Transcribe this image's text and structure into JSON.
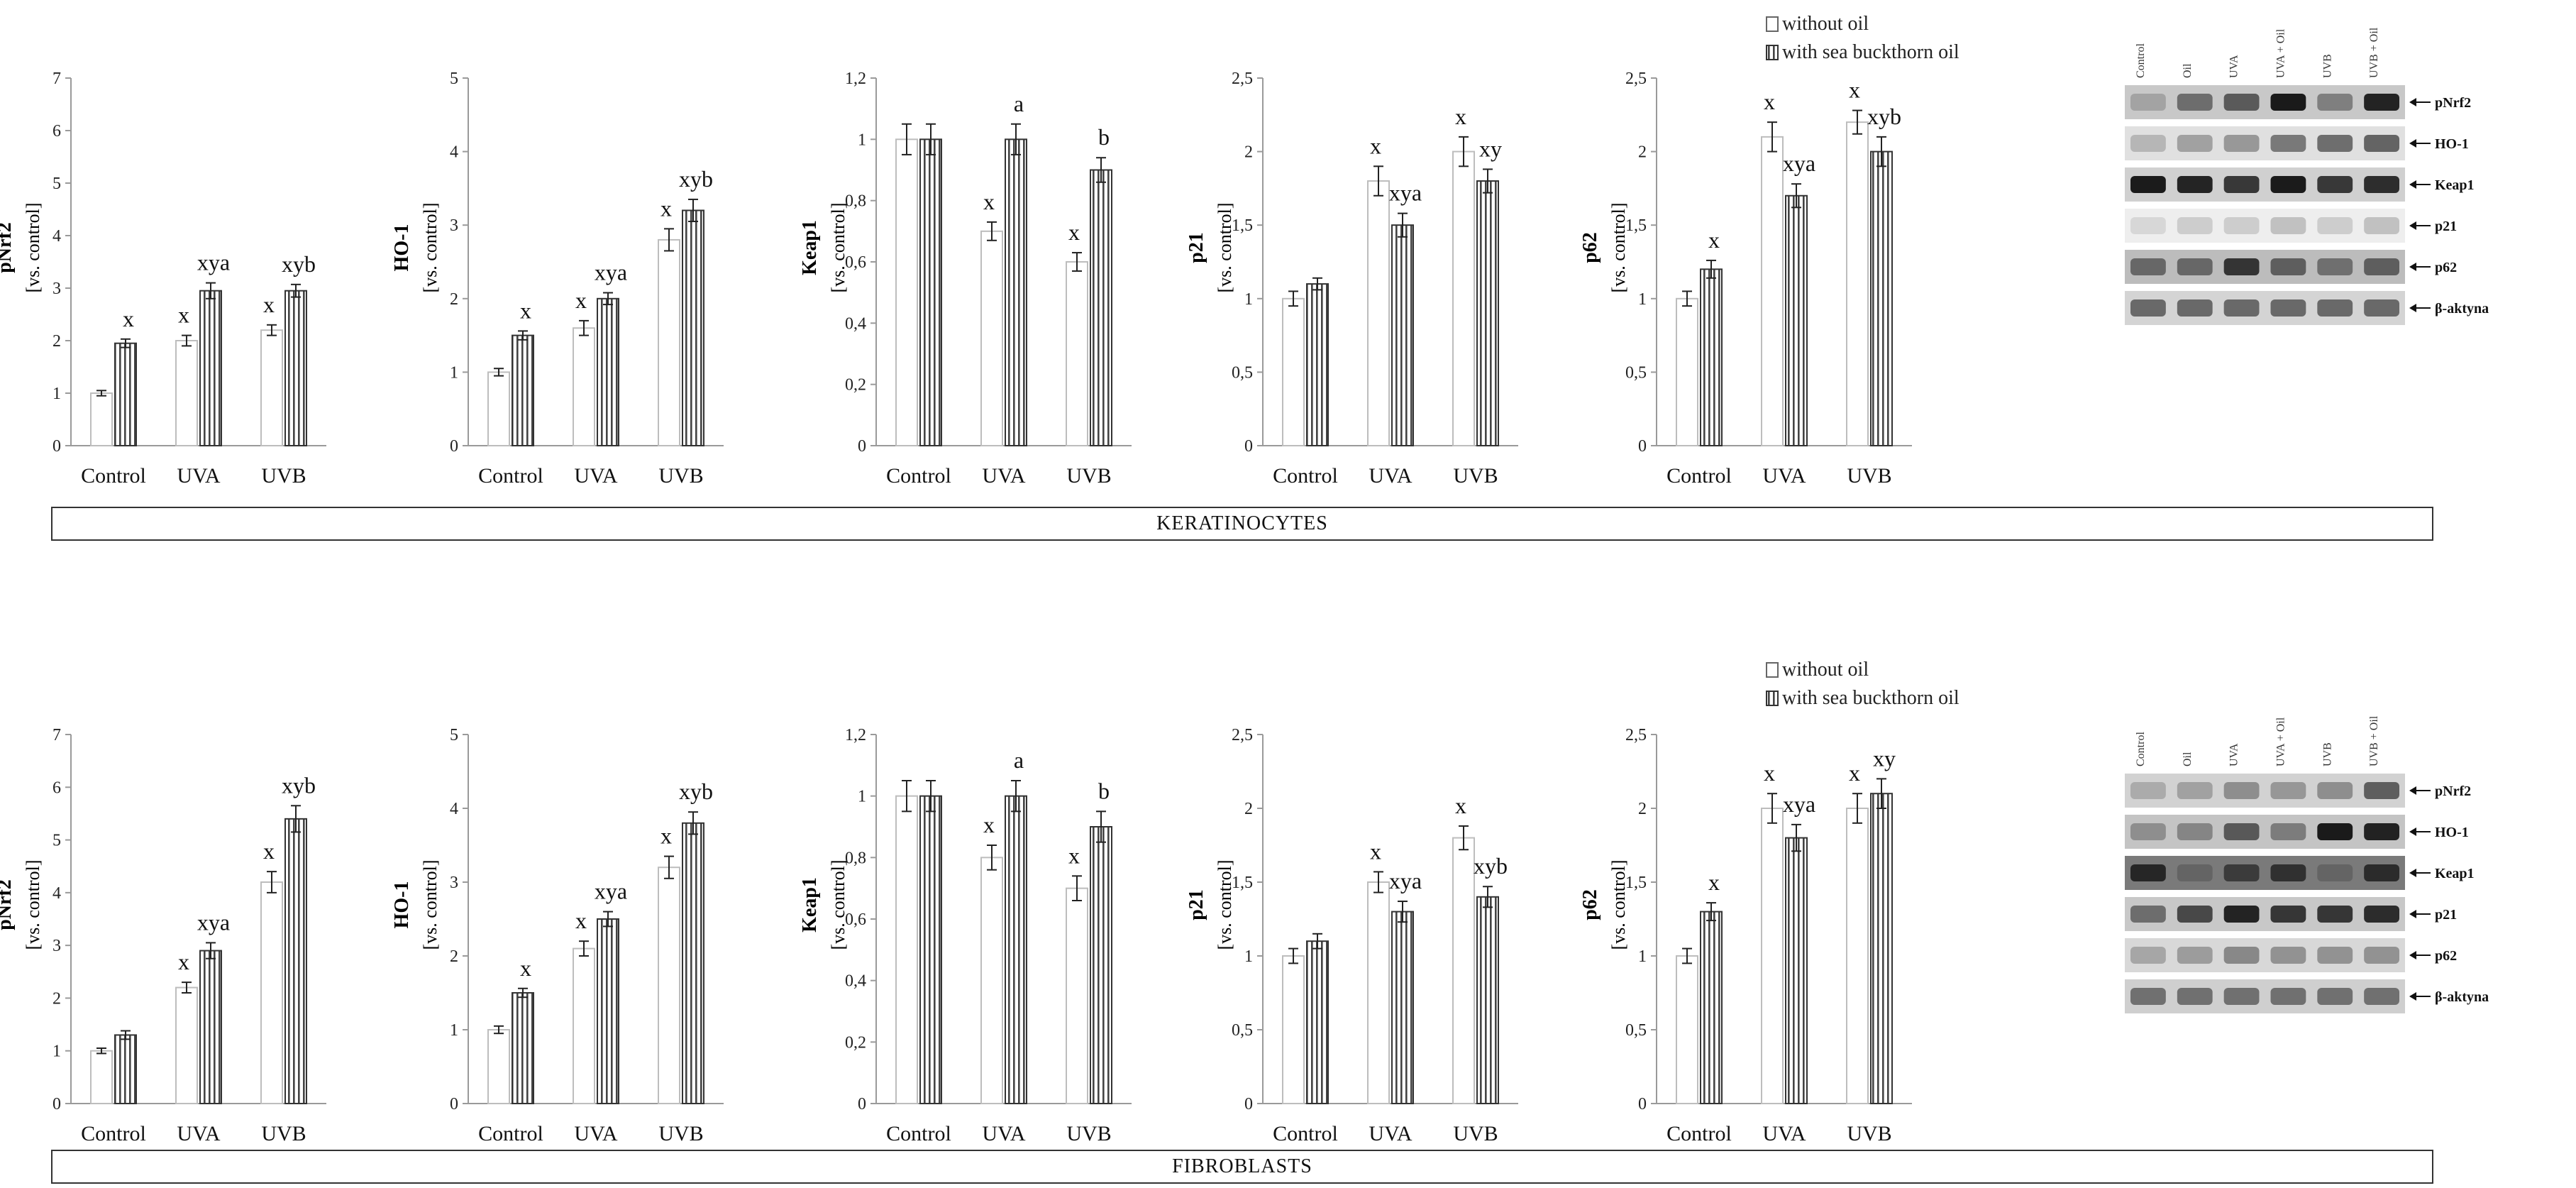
{
  "legend": {
    "without_oil": "without oil",
    "with_oil": "with sea buckthorn oil"
  },
  "sections": {
    "keratinocytes": "KERATINOCYTES",
    "fibroblasts": "FIBROBLASTS"
  },
  "western_blot": {
    "columns": [
      "Control",
      "Oil",
      "UVA",
      "UVA + Oil",
      "UVB",
      "UVB + Oil"
    ],
    "rows_keratinocytes": [
      "pNrf2",
      "HO-1",
      "Keap1",
      "p21",
      "p62",
      "β-aktyna"
    ],
    "rows_fibroblasts": [
      "pNrf2",
      "HO-1",
      "Keap1",
      "p21",
      "p62",
      "β-aktyna"
    ]
  },
  "colors": {
    "bar_without_oil": "#ffffff",
    "bar_with_oil_hatch": "#555555",
    "axis": "#999999"
  },
  "chart_data": [
    {
      "type": "bar",
      "panel": "keratinocytes",
      "title": "pNrf2",
      "ylabel": "[vs. control]",
      "categories": [
        "Control",
        "UVA",
        "UVB"
      ],
      "ylim": [
        0,
        7
      ],
      "yticks": [
        "0",
        "1",
        "2",
        "3",
        "4",
        "5",
        "6",
        "7"
      ],
      "series": [
        {
          "name": "without oil",
          "values": [
            1.0,
            2.0,
            2.2
          ],
          "errors": [
            0.05,
            0.1,
            0.1
          ],
          "labels": [
            "",
            "x",
            "x"
          ]
        },
        {
          "name": "with sea buckthorn oil",
          "values": [
            1.95,
            2.95,
            2.95
          ],
          "errors": [
            0.08,
            0.15,
            0.12
          ],
          "labels": [
            "x",
            "xya",
            "xyb"
          ]
        }
      ]
    },
    {
      "type": "bar",
      "panel": "keratinocytes",
      "title": "HO-1",
      "ylabel": "[vs. control]",
      "categories": [
        "Control",
        "UVA",
        "UVB"
      ],
      "ylim": [
        0,
        5
      ],
      "yticks": [
        "0",
        "1",
        "2",
        "3",
        "4",
        "5"
      ],
      "series": [
        {
          "name": "without oil",
          "values": [
            1.0,
            1.6,
            2.8
          ],
          "errors": [
            0.05,
            0.1,
            0.15
          ],
          "labels": [
            "",
            "x",
            "x"
          ]
        },
        {
          "name": "with sea buckthorn oil",
          "values": [
            1.5,
            2.0,
            3.2
          ],
          "errors": [
            0.06,
            0.08,
            0.15
          ],
          "labels": [
            "x",
            "xya",
            "xyb"
          ]
        }
      ]
    },
    {
      "type": "bar",
      "panel": "keratinocytes",
      "title": "Keap1",
      "ylabel": "[vs. control]",
      "categories": [
        "Control",
        "UVA",
        "UVB"
      ],
      "ylim": [
        0,
        1.2
      ],
      "yticks": [
        "0",
        "0,2",
        "0,4",
        "0,6",
        "0,8",
        "1",
        "1,2"
      ],
      "series": [
        {
          "name": "without oil",
          "values": [
            1.0,
            0.7,
            0.6
          ],
          "errors": [
            0.05,
            0.03,
            0.03
          ],
          "labels": [
            "",
            "x",
            "x"
          ]
        },
        {
          "name": "with sea buckthorn oil",
          "values": [
            1.0,
            1.0,
            0.9
          ],
          "errors": [
            0.05,
            0.05,
            0.04
          ],
          "labels": [
            "",
            "a",
            "b"
          ]
        }
      ]
    },
    {
      "type": "bar",
      "panel": "keratinocytes",
      "title": "p21",
      "ylabel": "[vs. control]",
      "categories": [
        "Control",
        "UVA",
        "UVB"
      ],
      "ylim": [
        0,
        2.5
      ],
      "yticks": [
        "0",
        "0,5",
        "1",
        "1,5",
        "2",
        "2,5"
      ],
      "series": [
        {
          "name": "without oil",
          "values": [
            1.0,
            1.8,
            2.0
          ],
          "errors": [
            0.05,
            0.1,
            0.1
          ],
          "labels": [
            "",
            "x",
            "x"
          ]
        },
        {
          "name": "with sea buckthorn oil",
          "values": [
            1.1,
            1.5,
            1.8
          ],
          "errors": [
            0.04,
            0.08,
            0.08
          ],
          "labels": [
            "",
            "xya",
            "xy"
          ]
        }
      ]
    },
    {
      "type": "bar",
      "panel": "keratinocytes",
      "title": "p62",
      "ylabel": "[vs. control]",
      "categories": [
        "Control",
        "UVA",
        "UVB"
      ],
      "ylim": [
        0,
        2.5
      ],
      "yticks": [
        "0",
        "0,5",
        "1",
        "1,5",
        "2",
        "2,5"
      ],
      "series": [
        {
          "name": "without oil",
          "values": [
            1.0,
            2.1,
            2.2
          ],
          "errors": [
            0.05,
            0.1,
            0.08
          ],
          "labels": [
            "",
            "x",
            "x"
          ]
        },
        {
          "name": "with sea buckthorn oil",
          "values": [
            1.2,
            1.7,
            2.0
          ],
          "errors": [
            0.06,
            0.08,
            0.1
          ],
          "labels": [
            "x",
            "xya",
            "xyb"
          ]
        }
      ]
    },
    {
      "type": "bar",
      "panel": "fibroblasts",
      "title": "pNrf2",
      "ylabel": "[vs. control]",
      "categories": [
        "Control",
        "UVA",
        "UVB"
      ],
      "ylim": [
        0,
        7
      ],
      "yticks": [
        "0",
        "1",
        "2",
        "3",
        "4",
        "5",
        "6",
        "7"
      ],
      "series": [
        {
          "name": "without oil",
          "values": [
            1.0,
            2.2,
            4.2
          ],
          "errors": [
            0.05,
            0.1,
            0.2
          ],
          "labels": [
            "",
            "x",
            "x"
          ]
        },
        {
          "name": "with sea buckthorn oil",
          "values": [
            1.3,
            2.9,
            5.4
          ],
          "errors": [
            0.08,
            0.15,
            0.25
          ],
          "labels": [
            "",
            "xya",
            "xyb"
          ]
        }
      ]
    },
    {
      "type": "bar",
      "panel": "fibroblasts",
      "title": "HO-1",
      "ylabel": "[vs. control]",
      "categories": [
        "Control",
        "UVA",
        "UVB"
      ],
      "ylim": [
        0,
        5
      ],
      "yticks": [
        "0",
        "1",
        "2",
        "3",
        "4",
        "5"
      ],
      "series": [
        {
          "name": "without oil",
          "values": [
            1.0,
            2.1,
            3.2
          ],
          "errors": [
            0.05,
            0.1,
            0.15
          ],
          "labels": [
            "",
            "x",
            "x"
          ]
        },
        {
          "name": "with sea buckthorn oil",
          "values": [
            1.5,
            2.5,
            3.8
          ],
          "errors": [
            0.06,
            0.1,
            0.15
          ],
          "labels": [
            "x",
            "xya",
            "xyb"
          ]
        }
      ]
    },
    {
      "type": "bar",
      "panel": "fibroblasts",
      "title": "Keap1",
      "ylabel": "[vs. control]",
      "categories": [
        "Control",
        "UVA",
        "UVB"
      ],
      "ylim": [
        0,
        1.2
      ],
      "yticks": [
        "0",
        "0,2",
        "0,4",
        "0,6",
        "0,8",
        "1",
        "1,2"
      ],
      "series": [
        {
          "name": "without oil",
          "values": [
            1.0,
            0.8,
            0.7
          ],
          "errors": [
            0.05,
            0.04,
            0.04
          ],
          "labels": [
            "",
            "x",
            "x"
          ]
        },
        {
          "name": "with sea buckthorn oil",
          "values": [
            1.0,
            1.0,
            0.9
          ],
          "errors": [
            0.05,
            0.05,
            0.05
          ],
          "labels": [
            "",
            "a",
            "b"
          ]
        }
      ]
    },
    {
      "type": "bar",
      "panel": "fibroblasts",
      "title": "p21",
      "ylabel": "[vs. control]",
      "categories": [
        "Control",
        "UVA",
        "UVB"
      ],
      "ylim": [
        0,
        2.5
      ],
      "yticks": [
        "0",
        "0,5",
        "1",
        "1,5",
        "2",
        "2,5"
      ],
      "series": [
        {
          "name": "without oil",
          "values": [
            1.0,
            1.5,
            1.8
          ],
          "errors": [
            0.05,
            0.07,
            0.08
          ],
          "labels": [
            "",
            "x",
            "x"
          ]
        },
        {
          "name": "with sea buckthorn oil",
          "values": [
            1.1,
            1.3,
            1.4
          ],
          "errors": [
            0.05,
            0.07,
            0.07
          ],
          "labels": [
            "",
            "xya",
            "xyb"
          ]
        }
      ]
    },
    {
      "type": "bar",
      "panel": "fibroblasts",
      "title": "p62",
      "ylabel": "[vs. control]",
      "categories": [
        "Control",
        "UVA",
        "UVB"
      ],
      "ylim": [
        0,
        2.5
      ],
      "yticks": [
        "0",
        "0,5",
        "1",
        "1,5",
        "2",
        "2,5"
      ],
      "series": [
        {
          "name": "without oil",
          "values": [
            1.0,
            2.0,
            2.0
          ],
          "errors": [
            0.05,
            0.1,
            0.1
          ],
          "labels": [
            "",
            "x",
            "x"
          ]
        },
        {
          "name": "with sea buckthorn oil",
          "values": [
            1.3,
            1.8,
            2.1
          ],
          "errors": [
            0.06,
            0.09,
            0.1
          ],
          "labels": [
            "x",
            "xya",
            "xy"
          ]
        }
      ]
    }
  ]
}
